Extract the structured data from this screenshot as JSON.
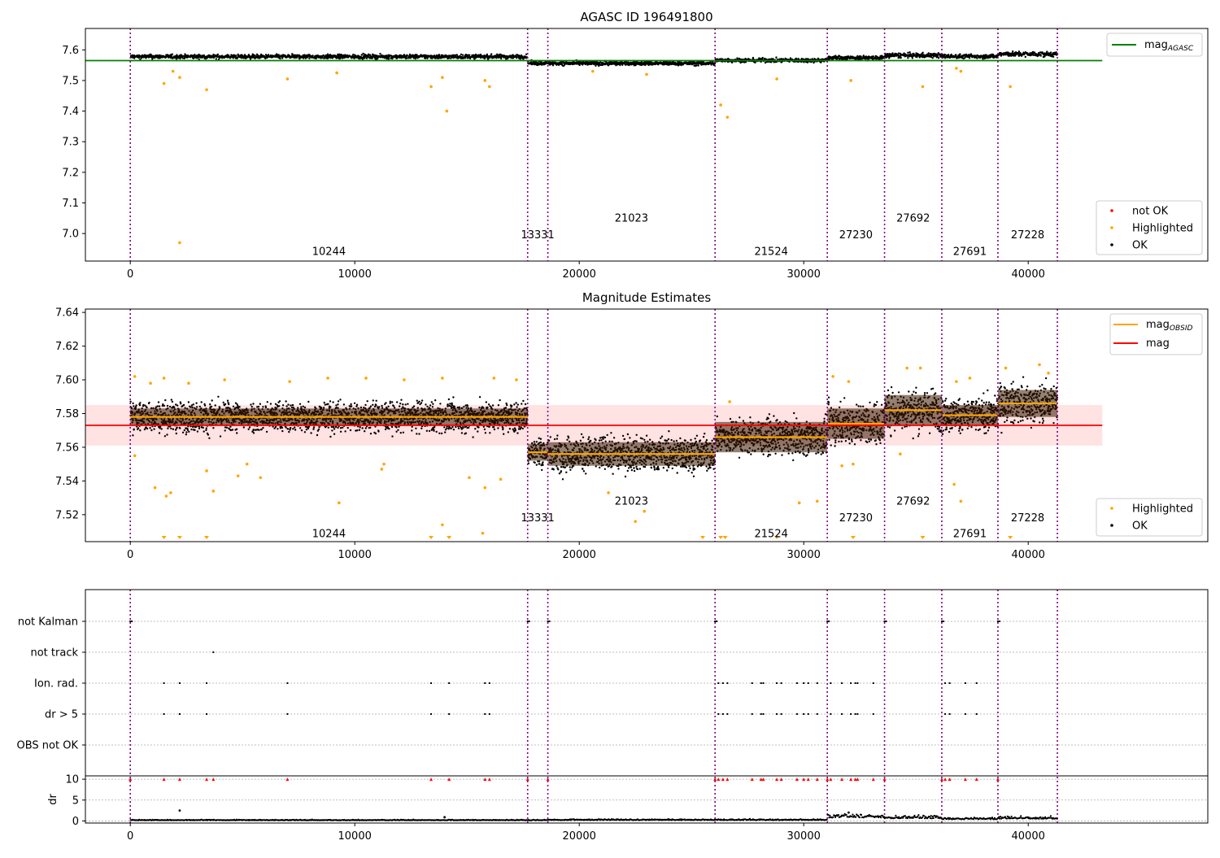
{
  "colors": {
    "ok": "#000000",
    "highlighted": "#ffa500",
    "not_ok": "#ff0000",
    "agasc_line": "#008000",
    "mean_line": "#ff0000",
    "obsid_line": "#ffa500",
    "band": "#ffd6d6",
    "divider": "#800080"
  },
  "obsid_boundaries": [
    0,
    17700,
    18600,
    26050,
    31050,
    33600,
    36150,
    38650,
    41300
  ],
  "obsids": [
    {
      "id": "10244",
      "start": 0,
      "end": 17700
    },
    {
      "id": "13331",
      "start": 17700,
      "end": 18600
    },
    {
      "id": "21023",
      "start": 18600,
      "end": 26050
    },
    {
      "id": "21524",
      "start": 26050,
      "end": 31050
    },
    {
      "id": "27230",
      "start": 31050,
      "end": 33600
    },
    {
      "id": "27692",
      "start": 33600,
      "end": 36150
    },
    {
      "id": "27691",
      "start": 36150,
      "end": 38650
    },
    {
      "id": "27228",
      "start": 38650,
      "end": 41300
    }
  ],
  "chart_data": [
    {
      "type": "scatter",
      "title": "AGASC ID 196491800",
      "xlim": [
        -2000,
        48000
      ],
      "ylim": [
        6.91,
        7.67
      ],
      "xticks": [
        0,
        10000,
        20000,
        30000,
        40000
      ],
      "yticks": [
        7.0,
        7.1,
        7.2,
        7.3,
        7.4,
        7.5,
        7.6
      ],
      "ytick_labels": [
        "7.0",
        "7.1",
        "7.2",
        "7.3",
        "7.4",
        "7.5",
        "7.6"
      ],
      "agasc_mag": 7.565,
      "agasc_line_x": [
        -2000,
        43300
      ],
      "obsid_means": [
        7.578,
        7.557,
        7.556,
        7.566,
        7.574,
        7.582,
        7.579,
        7.586
      ],
      "obsid_spread": [
        0.006,
        0.006,
        0.006,
        0.006,
        0.006,
        0.007,
        0.006,
        0.007
      ],
      "highlighted": [
        [
          2200,
          6.97
        ],
        [
          14100,
          7.4
        ],
        [
          26300,
          7.42
        ],
        [
          26600,
          7.38
        ],
        [
          3400,
          7.47
        ],
        [
          1500,
          7.49
        ],
        [
          2200,
          7.51
        ],
        [
          7000,
          7.505
        ],
        [
          13400,
          7.48
        ],
        [
          13900,
          7.51
        ],
        [
          15800,
          7.5
        ],
        [
          16000,
          7.48
        ],
        [
          28800,
          7.505
        ],
        [
          32100,
          7.5
        ],
        [
          35300,
          7.48
        ],
        [
          37000,
          7.53
        ],
        [
          39200,
          7.48
        ],
        [
          1900,
          7.53
        ],
        [
          9200,
          7.525
        ],
        [
          20600,
          7.53
        ],
        [
          23000,
          7.52
        ],
        [
          36800,
          7.54
        ]
      ],
      "legends": [
        {
          "position": "top-right",
          "entries": [
            {
              "kind": "line",
              "color_key": "agasc_line",
              "label": "mag",
              "sub": "AGASC"
            }
          ]
        },
        {
          "position": "bottom-right",
          "entries": [
            {
              "kind": "dot",
              "color_key": "not_ok",
              "label": "not OK"
            },
            {
              "kind": "dot",
              "color_key": "highlighted",
              "label": "Highlighted"
            },
            {
              "kind": "dot",
              "color_key": "ok",
              "label": "OK"
            }
          ]
        }
      ],
      "obsid_label_y": [
        6.94,
        6.995,
        7.05,
        6.94,
        6.995,
        7.05,
        6.94,
        6.995
      ]
    },
    {
      "type": "scatter",
      "title": "Magnitude Estimates",
      "xlim": [
        -2000,
        48000
      ],
      "ylim": [
        7.504,
        7.642
      ],
      "xticks": [
        0,
        10000,
        20000,
        30000,
        40000
      ],
      "yticks": [
        7.52,
        7.54,
        7.56,
        7.58,
        7.6,
        7.62,
        7.64
      ],
      "ytick_labels": [
        "7.52",
        "7.54",
        "7.56",
        "7.58",
        "7.60",
        "7.62",
        "7.64"
      ],
      "mag_mean": 7.573,
      "mag_band": [
        7.561,
        7.585
      ],
      "band_x": [
        -2000,
        43300
      ],
      "obsid_means": [
        7.578,
        7.557,
        7.556,
        7.566,
        7.574,
        7.582,
        7.579,
        7.586
      ],
      "obsid_box_halfwidth": [
        0.005,
        0.005,
        0.007,
        0.009,
        0.009,
        0.009,
        0.006,
        0.008
      ],
      "obsid_spread": [
        0.008,
        0.008,
        0.009,
        0.009,
        0.011,
        0.011,
        0.009,
        0.01
      ],
      "highlighted": [
        [
          200,
          7.555
        ],
        [
          1100,
          7.536
        ],
        [
          1600,
          7.531
        ],
        [
          1800,
          7.533
        ],
        [
          3400,
          7.546
        ],
        [
          3700,
          7.534
        ],
        [
          4800,
          7.543
        ],
        [
          5200,
          7.55
        ],
        [
          5800,
          7.542
        ],
        [
          9300,
          7.527
        ],
        [
          11200,
          7.547
        ],
        [
          11300,
          7.55
        ],
        [
          13900,
          7.514
        ],
        [
          15100,
          7.542
        ],
        [
          15700,
          7.509
        ],
        [
          15800,
          7.536
        ],
        [
          16500,
          7.541
        ],
        [
          21300,
          7.533
        ],
        [
          22500,
          7.516
        ],
        [
          22900,
          7.522
        ],
        [
          26700,
          7.587
        ],
        [
          29800,
          7.527
        ],
        [
          30600,
          7.528
        ],
        [
          31700,
          7.549
        ],
        [
          32200,
          7.55
        ],
        [
          34300,
          7.556
        ],
        [
          36700,
          7.538
        ],
        [
          37000,
          7.528
        ],
        [
          200,
          7.602
        ],
        [
          900,
          7.598
        ],
        [
          1500,
          7.601
        ],
        [
          2600,
          7.598
        ],
        [
          4200,
          7.6
        ],
        [
          7100,
          7.599
        ],
        [
          8800,
          7.601
        ],
        [
          10500,
          7.601
        ],
        [
          12200,
          7.6
        ],
        [
          13900,
          7.601
        ],
        [
          16200,
          7.601
        ],
        [
          17200,
          7.6
        ],
        [
          31300,
          7.602
        ],
        [
          32000,
          7.599
        ],
        [
          34600,
          7.607
        ],
        [
          35200,
          7.607
        ],
        [
          36800,
          7.599
        ],
        [
          37400,
          7.601
        ],
        [
          39000,
          7.607
        ],
        [
          40500,
          7.609
        ],
        [
          40900,
          7.604
        ]
      ],
      "highlighted_below": [
        1500,
        2200,
        3400,
        13400,
        14200,
        25500,
        26300,
        26500,
        28800,
        32200,
        35300,
        39200
      ],
      "legend": {
        "position": "top-right",
        "entries": [
          {
            "kind": "line",
            "color_key": "obsid_line",
            "label": "mag",
            "sub": "OBSID"
          },
          {
            "kind": "line",
            "color_key": "mean_line",
            "label": "mag"
          }
        ]
      },
      "legend2": {
        "position": "bottom-right",
        "entries": [
          {
            "kind": "dot",
            "color_key": "highlighted",
            "label": "Highlighted"
          },
          {
            "kind": "dot",
            "color_key": "ok",
            "label": "OK"
          }
        ]
      },
      "obsid_label_y": [
        7.5085,
        7.518,
        7.528,
        7.5085,
        7.518,
        7.528,
        7.5085,
        7.518
      ]
    },
    {
      "type": "scatter",
      "title": "",
      "xlim": [
        -2000,
        48000
      ],
      "flag_rows": [
        "not Kalman",
        "not track",
        "Ion. rad.",
        "dr > 5",
        "OBS not OK"
      ],
      "flag_points": {
        "not Kalman": [
          0,
          17700,
          18600,
          26050,
          31050,
          33600,
          36150,
          38650
        ],
        "not track": [
          3700
        ],
        "Ion. rad.": [
          1500,
          2200,
          3400,
          7000,
          13400,
          14200,
          15800,
          16000,
          26200,
          26400,
          26600,
          27700,
          28100,
          28200,
          28800,
          29000,
          29700,
          30000,
          30200,
          30600,
          31200,
          31700,
          32100,
          32300,
          32400,
          33100,
          36300,
          36500,
          37200,
          37700
        ],
        "dr > 5": [
          1500,
          2200,
          3400,
          7000,
          13400,
          14200,
          15800,
          16000,
          26200,
          26400,
          26600,
          27700,
          28100,
          28200,
          28800,
          29000,
          29700,
          30000,
          30200,
          30600,
          31200,
          31700,
          32100,
          32300,
          32400,
          33100,
          36300,
          36500,
          37200,
          37700
        ],
        "OBS not OK": []
      },
      "dr_ylabel": "dr",
      "dr_ylim": [
        -0.5,
        10.8
      ],
      "dr_yticks": [
        0,
        5,
        10
      ],
      "dr_baseline": [
        0.15,
        0.15,
        0.2,
        0.2,
        0.8,
        0.6,
        0.4,
        0.5
      ],
      "dr_outliers": [
        [
          2200,
          2.5
        ],
        [
          32000,
          2.0
        ],
        [
          14000,
          0.9
        ]
      ],
      "dr_clipped": [
        0,
        1500,
        2200,
        3400,
        3700,
        7000,
        13400,
        14200,
        15800,
        16000,
        17700,
        18600,
        26050,
        26200,
        26400,
        26600,
        27700,
        28100,
        28200,
        28800,
        29000,
        29700,
        30000,
        30200,
        30600,
        31050,
        31200,
        31700,
        32100,
        32300,
        32400,
        33100,
        33600,
        36150,
        36300,
        36500,
        37200,
        37700,
        38650
      ],
      "xticks": [
        0,
        10000,
        20000,
        30000,
        40000
      ]
    }
  ]
}
